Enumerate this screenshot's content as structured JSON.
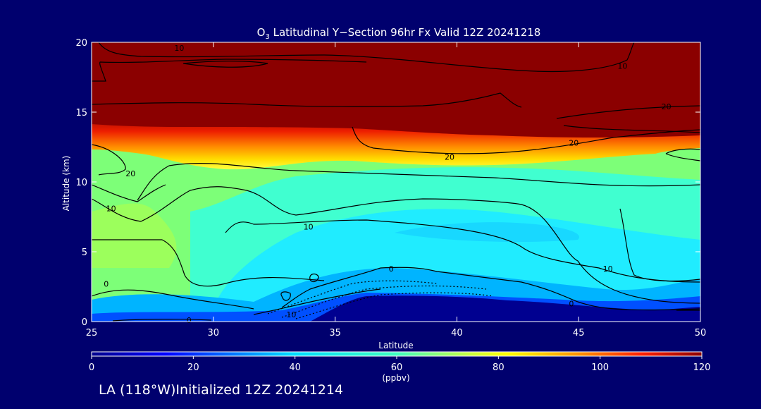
{
  "chart_data": {
    "type": "heatmap",
    "title_main": "O",
    "title_sub": "3",
    "title_rest": " Latitudinal Y−Section 96hr  Fx Valid 12Z 20241218",
    "xlabel": "Latitude",
    "ylabel": "Altitude (km)",
    "xlim": [
      25,
      50
    ],
    "ylim": [
      0,
      20
    ],
    "x_ticks": [
      25,
      30,
      35,
      40,
      45,
      50
    ],
    "y_ticks": [
      0,
      5,
      10,
      15,
      20
    ],
    "x_tick_labels": [
      "25",
      "30",
      "35",
      "40",
      "45",
      "50"
    ],
    "y_tick_labels": [
      "0",
      "5",
      "10",
      "15",
      "20"
    ],
    "colorbar": {
      "range": [
        0,
        120
      ],
      "units": "(ppbv)",
      "ticks": [
        0,
        20,
        40,
        60,
        80,
        100,
        120
      ],
      "tick_labels": [
        "0",
        "20",
        "40",
        "60",
        "80",
        "100",
        "120"
      ]
    },
    "contour_labels": [
      {
        "text": "10",
        "x": 28.6,
        "y": 19.6
      },
      {
        "text": "10",
        "x": 46.8,
        "y": 18.3
      },
      {
        "text": "20",
        "x": 48.6,
        "y": 15.4
      },
      {
        "text": "20",
        "x": 44.8,
        "y": 12.8
      },
      {
        "text": "20",
        "x": 26.6,
        "y": 10.6
      },
      {
        "text": "20",
        "x": 39.7,
        "y": 11.8
      },
      {
        "text": "10",
        "x": 25.8,
        "y": 8.1
      },
      {
        "text": "10",
        "x": 33.9,
        "y": 6.8
      },
      {
        "text": "10",
        "x": 46.2,
        "y": 3.8
      },
      {
        "text": "0",
        "x": 25.6,
        "y": 2.7
      },
      {
        "text": "0",
        "x": 37.3,
        "y": 3.8
      },
      {
        "text": "0",
        "x": 29.0,
        "y": 0.1
      },
      {
        "text": "0",
        "x": 44.7,
        "y": 1.3
      },
      {
        "text": "10",
        "x": 33.2,
        "y": 0.5
      }
    ]
  },
  "footer": {
    "text": "LA (118°W)Initialized 12Z 20241214"
  }
}
